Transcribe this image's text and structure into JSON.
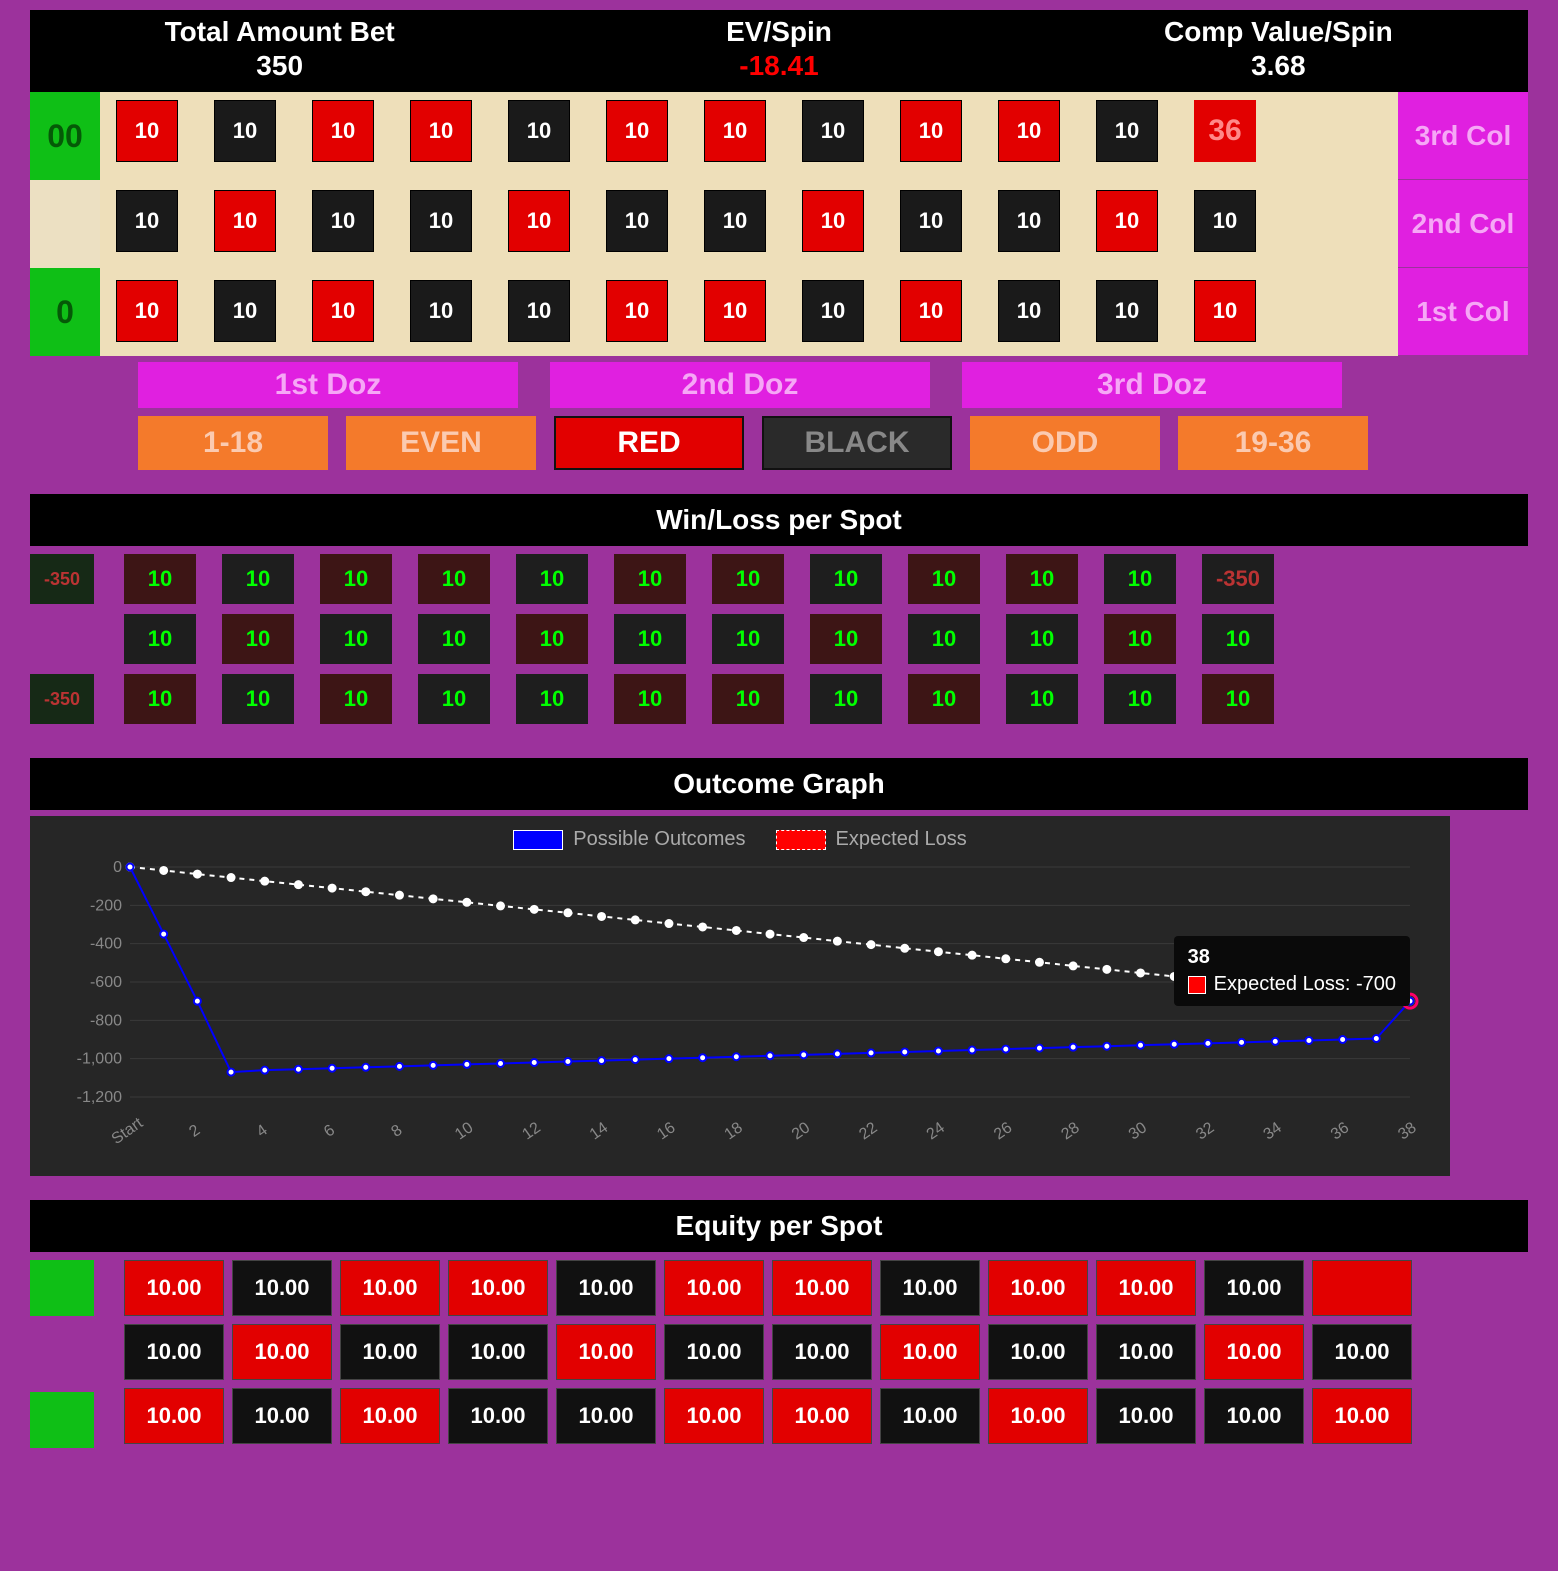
{
  "header": {
    "total_label": "Total Amount Bet",
    "total_value": "350",
    "ev_label": "EV/Spin",
    "ev_value": "-18.41",
    "comp_label": "Comp Value/Spin",
    "comp_value": "3.68"
  },
  "zeros": {
    "dz": "00",
    "sz": "0"
  },
  "board": {
    "row3": [
      {
        "v": "10",
        "c": "red"
      },
      {
        "v": "10",
        "c": "black"
      },
      {
        "v": "10",
        "c": "red"
      },
      {
        "v": "10",
        "c": "red"
      },
      {
        "v": "10",
        "c": "black"
      },
      {
        "v": "10",
        "c": "red"
      },
      {
        "v": "10",
        "c": "red"
      },
      {
        "v": "10",
        "c": "black"
      },
      {
        "v": "10",
        "c": "red"
      },
      {
        "v": "10",
        "c": "red"
      },
      {
        "v": "10",
        "c": "black"
      }
    ],
    "last36": "36",
    "row2": [
      {
        "v": "10",
        "c": "black"
      },
      {
        "v": "10",
        "c": "red"
      },
      {
        "v": "10",
        "c": "black"
      },
      {
        "v": "10",
        "c": "black"
      },
      {
        "v": "10",
        "c": "red"
      },
      {
        "v": "10",
        "c": "black"
      },
      {
        "v": "10",
        "c": "black"
      },
      {
        "v": "10",
        "c": "red"
      },
      {
        "v": "10",
        "c": "black"
      },
      {
        "v": "10",
        "c": "black"
      },
      {
        "v": "10",
        "c": "red"
      },
      {
        "v": "10",
        "c": "black"
      }
    ],
    "row1": [
      {
        "v": "10",
        "c": "red"
      },
      {
        "v": "10",
        "c": "black"
      },
      {
        "v": "10",
        "c": "red"
      },
      {
        "v": "10",
        "c": "black"
      },
      {
        "v": "10",
        "c": "black"
      },
      {
        "v": "10",
        "c": "red"
      },
      {
        "v": "10",
        "c": "red"
      },
      {
        "v": "10",
        "c": "black"
      },
      {
        "v": "10",
        "c": "red"
      },
      {
        "v": "10",
        "c": "black"
      },
      {
        "v": "10",
        "c": "black"
      },
      {
        "v": "10",
        "c": "red"
      }
    ],
    "col_labels": [
      "3rd Col",
      "2nd Col",
      "1st Col"
    ],
    "doz": [
      "1st Doz",
      "2nd Doz",
      "3rd Doz"
    ],
    "bets": [
      {
        "t": "1-18",
        "c": "orange"
      },
      {
        "t": "EVEN",
        "c": "orange"
      },
      {
        "t": "RED",
        "c": "red"
      },
      {
        "t": "BLACK",
        "c": "black"
      },
      {
        "t": "ODD",
        "c": "orange"
      },
      {
        "t": "19-36",
        "c": "orange"
      }
    ]
  },
  "winloss": {
    "title": "Win/Loss per Spot",
    "z1": "-350",
    "z2": "-350",
    "row3": [
      {
        "v": "10",
        "c": "dr"
      },
      {
        "v": "10",
        "c": "db"
      },
      {
        "v": "10",
        "c": "dr"
      },
      {
        "v": "10",
        "c": "dr"
      },
      {
        "v": "10",
        "c": "db"
      },
      {
        "v": "10",
        "c": "dr"
      },
      {
        "v": "10",
        "c": "dr"
      },
      {
        "v": "10",
        "c": "db"
      },
      {
        "v": "10",
        "c": "dr"
      },
      {
        "v": "10",
        "c": "dr"
      },
      {
        "v": "10",
        "c": "db"
      },
      {
        "v": "-350",
        "c": "neg"
      }
    ],
    "row2": [
      {
        "v": "10",
        "c": "db"
      },
      {
        "v": "10",
        "c": "dr"
      },
      {
        "v": "10",
        "c": "db"
      },
      {
        "v": "10",
        "c": "db"
      },
      {
        "v": "10",
        "c": "dr"
      },
      {
        "v": "10",
        "c": "db"
      },
      {
        "v": "10",
        "c": "db"
      },
      {
        "v": "10",
        "c": "dr"
      },
      {
        "v": "10",
        "c": "db"
      },
      {
        "v": "10",
        "c": "db"
      },
      {
        "v": "10",
        "c": "dr"
      },
      {
        "v": "10",
        "c": "db"
      }
    ],
    "row1": [
      {
        "v": "10",
        "c": "dr"
      },
      {
        "v": "10",
        "c": "db"
      },
      {
        "v": "10",
        "c": "dr"
      },
      {
        "v": "10",
        "c": "db"
      },
      {
        "v": "10",
        "c": "db"
      },
      {
        "v": "10",
        "c": "dr"
      },
      {
        "v": "10",
        "c": "dr"
      },
      {
        "v": "10",
        "c": "db"
      },
      {
        "v": "10",
        "c": "dr"
      },
      {
        "v": "10",
        "c": "db"
      },
      {
        "v": "10",
        "c": "db"
      },
      {
        "v": "10",
        "c": "dr"
      }
    ]
  },
  "chart": {
    "title": "Outcome Graph",
    "legend1": "Possible Outcomes",
    "legend2": "Expected Loss",
    "ylim": [
      -1200,
      0
    ],
    "yticks": [
      0,
      -200,
      -400,
      -600,
      -800,
      -1000,
      -1200
    ],
    "xticks": [
      "Start",
      "2",
      "4",
      "6",
      "8",
      "10",
      "12",
      "14",
      "16",
      "18",
      "20",
      "22",
      "24",
      "26",
      "28",
      "30",
      "32",
      "34",
      "36",
      "38"
    ],
    "possible": [
      0,
      -350,
      -700,
      -1070,
      -1060,
      -1055,
      -1050,
      -1045,
      -1040,
      -1035,
      -1030,
      -1025,
      -1020,
      -1015,
      -1010,
      -1005,
      -1000,
      -995,
      -990,
      -985,
      -980,
      -975,
      -970,
      -965,
      -960,
      -955,
      -950,
      -945,
      -940,
      -935,
      -930,
      -925,
      -920,
      -915,
      -910,
      -905,
      -900,
      -895,
      -700
    ],
    "expected": [
      0,
      -18,
      -37,
      -55,
      -74,
      -92,
      -110,
      -129,
      -147,
      -166,
      -184,
      -203,
      -221,
      -239,
      -258,
      -276,
      -295,
      -313,
      -331,
      -350,
      -368,
      -387,
      -405,
      -424,
      -442,
      -460,
      -479,
      -497,
      -516,
      -534,
      -553,
      -571,
      -589,
      -608,
      -626,
      -645,
      -663,
      -682,
      -700
    ],
    "tooltip": {
      "title": "38",
      "text": "Expected Loss: -700"
    },
    "colors": {
      "possible": "#0000ff",
      "expected": "#ff6666",
      "grid": "#3a3a3a",
      "axis_text": "#888"
    }
  },
  "equity": {
    "title": "Equity per Spot",
    "row3": [
      {
        "v": "10.00",
        "c": "red"
      },
      {
        "v": "10.00",
        "c": "black"
      },
      {
        "v": "10.00",
        "c": "red"
      },
      {
        "v": "10.00",
        "c": "red"
      },
      {
        "v": "10.00",
        "c": "black"
      },
      {
        "v": "10.00",
        "c": "red"
      },
      {
        "v": "10.00",
        "c": "red"
      },
      {
        "v": "10.00",
        "c": "black"
      },
      {
        "v": "10.00",
        "c": "red"
      },
      {
        "v": "10.00",
        "c": "red"
      },
      {
        "v": "10.00",
        "c": "black"
      },
      {
        "v": "",
        "c": "red"
      }
    ],
    "row2": [
      {
        "v": "10.00",
        "c": "black"
      },
      {
        "v": "10.00",
        "c": "red"
      },
      {
        "v": "10.00",
        "c": "black"
      },
      {
        "v": "10.00",
        "c": "black"
      },
      {
        "v": "10.00",
        "c": "red"
      },
      {
        "v": "10.00",
        "c": "black"
      },
      {
        "v": "10.00",
        "c": "black"
      },
      {
        "v": "10.00",
        "c": "red"
      },
      {
        "v": "10.00",
        "c": "black"
      },
      {
        "v": "10.00",
        "c": "black"
      },
      {
        "v": "10.00",
        "c": "red"
      },
      {
        "v": "10.00",
        "c": "black"
      }
    ],
    "row1": [
      {
        "v": "10.00",
        "c": "red"
      },
      {
        "v": "10.00",
        "c": "black"
      },
      {
        "v": "10.00",
        "c": "red"
      },
      {
        "v": "10.00",
        "c": "black"
      },
      {
        "v": "10.00",
        "c": "black"
      },
      {
        "v": "10.00",
        "c": "red"
      },
      {
        "v": "10.00",
        "c": "red"
      },
      {
        "v": "10.00",
        "c": "black"
      },
      {
        "v": "10.00",
        "c": "red"
      },
      {
        "v": "10.00",
        "c": "black"
      },
      {
        "v": "10.00",
        "c": "black"
      },
      {
        "v": "10.00",
        "c": "red"
      }
    ]
  }
}
